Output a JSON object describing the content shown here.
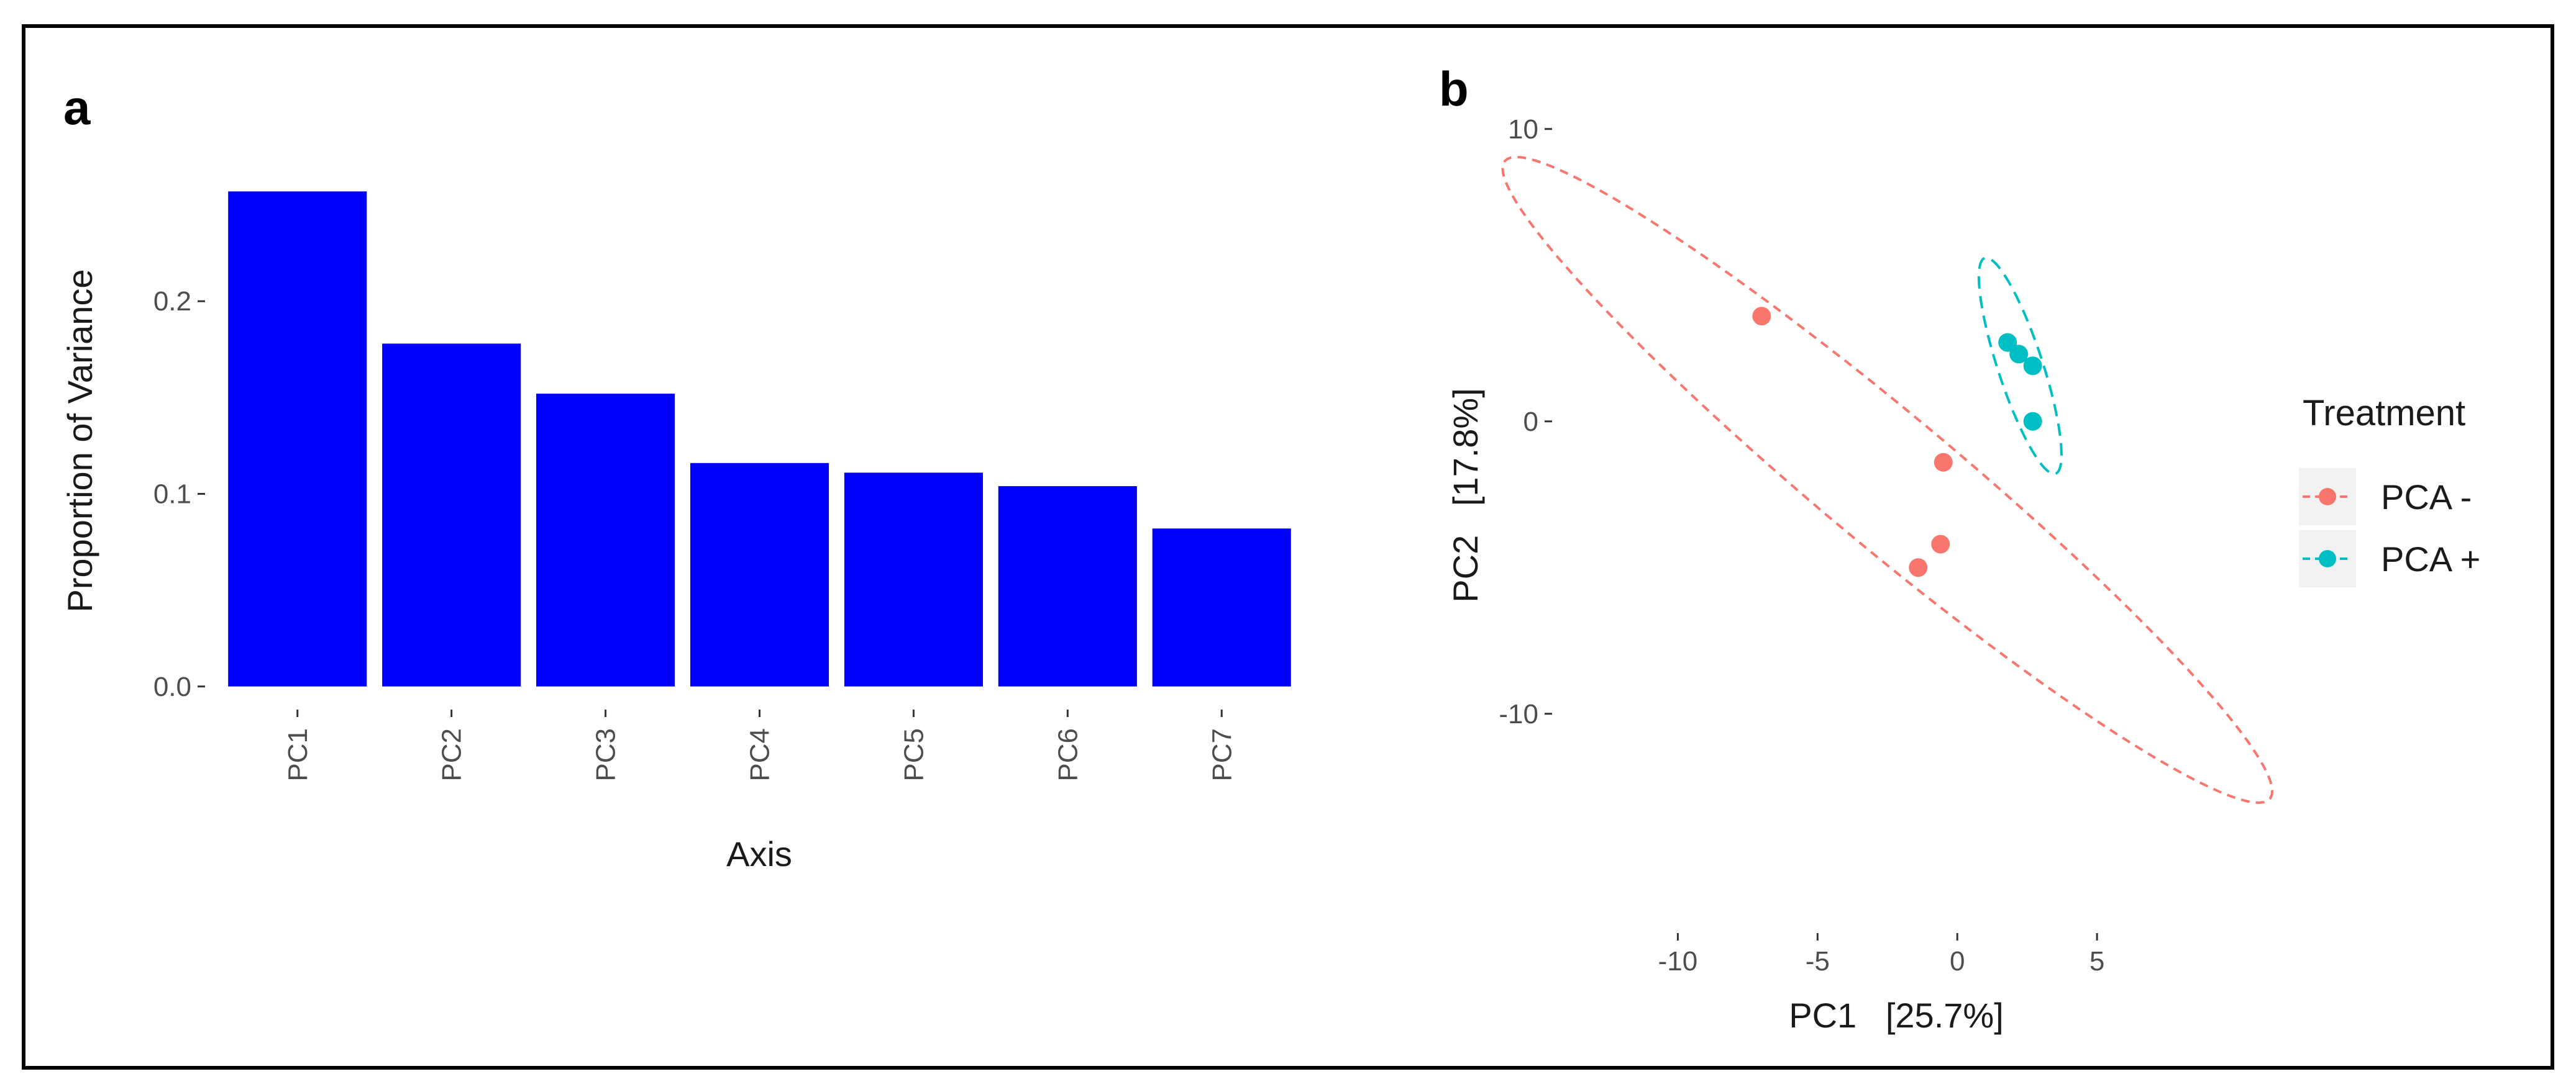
{
  "chart_data": [
    {
      "panel": "a",
      "type": "bar",
      "title": "",
      "xlabel": "Axis",
      "ylabel": "Proportion of Variance",
      "categories": [
        "PC1",
        "PC2",
        "PC3",
        "PC4",
        "PC5",
        "PC6",
        "PC7"
      ],
      "values": [
        0.257,
        0.178,
        0.152,
        0.116,
        0.111,
        0.104,
        0.082
      ],
      "bar_color": "#0000ff",
      "ylim": [
        -0.012,
        0.27
      ],
      "yticks": [
        0.0,
        0.1,
        0.2
      ],
      "ytick_labels": [
        "0.0",
        "0.1",
        "0.2"
      ],
      "grid": true
    },
    {
      "panel": "b",
      "type": "scatter",
      "title": "",
      "xlabel": "PC1   [25.7%]",
      "ylabel": "PC2   [17.8%]",
      "xlim": [
        -14.5,
        10
      ],
      "ylim": [
        -17.5,
        12.5
      ],
      "xticks": [
        -10,
        -5,
        0,
        5
      ],
      "xtick_labels": [
        "-10",
        "-5",
        "0",
        "5"
      ],
      "yticks": [
        -10,
        0,
        10
      ],
      "ytick_labels": [
        "-10",
        "0",
        "10"
      ],
      "grid": true,
      "legend": {
        "title": "Treatment",
        "position": "right"
      },
      "series": [
        {
          "name": "PCA -",
          "color": "#f8766d",
          "points": [
            [
              -7.0,
              3.6
            ],
            [
              -0.5,
              -1.4
            ],
            [
              -0.6,
              -4.2
            ],
            [
              -1.4,
              -5.0
            ]
          ],
          "ellipse": {
            "center": [
              -2.5,
              -2.0
            ],
            "semi_axes": [
              17.5,
              2.3
            ],
            "angle_deg": -38.5
          }
        },
        {
          "name": "PCA +",
          "color": "#00bfc4",
          "points": [
            [
              1.8,
              2.7
            ],
            [
              2.2,
              2.3
            ],
            [
              2.7,
              1.9
            ],
            [
              2.7,
              0.0
            ]
          ],
          "ellipse": {
            "center": [
              2.25,
              1.9
            ],
            "semi_axes": [
              3.9,
              0.8
            ],
            "angle_deg": -71
          }
        }
      ]
    }
  ],
  "panels": {
    "a": "a",
    "b": "b"
  }
}
